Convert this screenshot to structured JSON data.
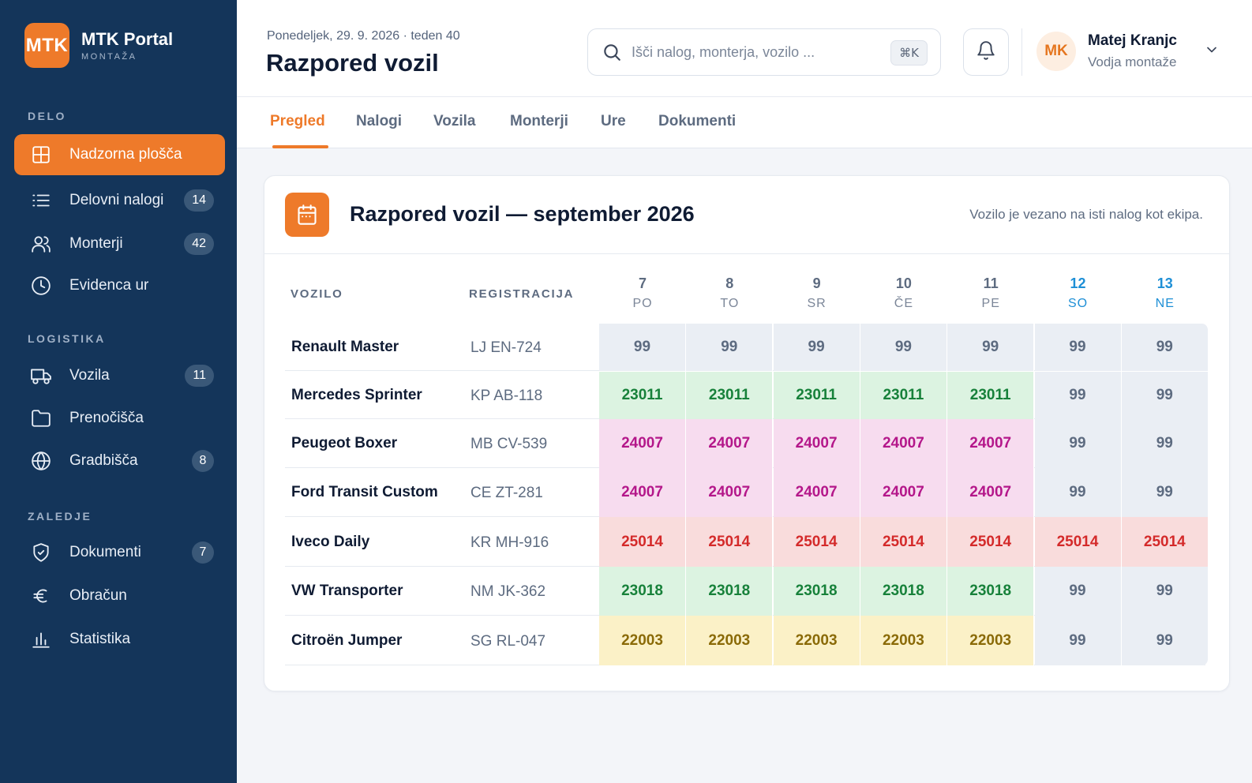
{
  "brand": {
    "logo": "MTK",
    "name": "MTK Portal",
    "sub": "MONTAŽA"
  },
  "sidebar": {
    "sections": [
      {
        "label": "DELO",
        "items": [
          {
            "label": "Nadzorna plošča",
            "icon": "dashboard-icon",
            "badge": "",
            "active": true
          },
          {
            "label": "Delovni nalogi",
            "icon": "list-icon",
            "badge": "14"
          },
          {
            "label": "Monterji",
            "icon": "users-icon",
            "badge": "42"
          },
          {
            "label": "Evidenca ur",
            "icon": "clock-icon",
            "badge": ""
          }
        ]
      },
      {
        "label": "LOGISTIKA",
        "items": [
          {
            "label": "Vozila",
            "icon": "truck-icon",
            "badge": "11"
          },
          {
            "label": "Prenočišča",
            "icon": "folder-icon",
            "badge": ""
          },
          {
            "label": "Gradbišča",
            "icon": "globe-icon",
            "badge": "8"
          }
        ]
      },
      {
        "label": "ZALEDJE",
        "items": [
          {
            "label": "Dokumenti",
            "icon": "shield-icon",
            "badge": "7"
          },
          {
            "label": "Obračun",
            "icon": "euro-icon",
            "badge": ""
          },
          {
            "label": "Statistika",
            "icon": "bar-chart-icon",
            "badge": ""
          }
        ]
      }
    ]
  },
  "header": {
    "date": "Ponedeljek, 29. 9. 2026 · teden 40",
    "title": "Razpored vozil",
    "search_placeholder": "Išči nalog, monterja, vozilo ...",
    "search_value": "",
    "shortcut": "⌘K",
    "user": {
      "initials": "MK",
      "name": "Matej Kranjc",
      "role": "Vodja montaže"
    }
  },
  "tabs": [
    "Pregled",
    "Nalogi",
    "Vozila",
    "Monterji",
    "Ure",
    "Dokumenti"
  ],
  "active_tab": "Pregled",
  "card": {
    "title": "Razpored vozil — september 2026",
    "note": "Vozilo je vezano na isti nalog kot ekipa.",
    "col_vehicle": "VOZILO",
    "col_reg": "REGISTRACIJA",
    "days": [
      {
        "num": "7",
        "dow": "PO",
        "weekend": false
      },
      {
        "num": "8",
        "dow": "TO",
        "weekend": false
      },
      {
        "num": "9",
        "dow": "SR",
        "weekend": false
      },
      {
        "num": "10",
        "dow": "ČE",
        "weekend": false
      },
      {
        "num": "11",
        "dow": "PE",
        "weekend": false
      },
      {
        "num": "12",
        "dow": "SO",
        "weekend": true
      },
      {
        "num": "13",
        "dow": "NE",
        "weekend": true
      }
    ],
    "rows": [
      {
        "name": "Renault Master",
        "reg": "LJ EN-724",
        "cells": [
          [
            "99",
            "idle"
          ],
          [
            "99",
            "idle"
          ],
          [
            "99",
            "idle"
          ],
          [
            "99",
            "idle"
          ],
          [
            "99",
            "idle"
          ],
          [
            "99",
            "idle"
          ],
          [
            "99",
            "idle"
          ]
        ]
      },
      {
        "name": "Mercedes Sprinter",
        "reg": "KP AB-118",
        "cells": [
          [
            "23011",
            "green"
          ],
          [
            "23011",
            "green"
          ],
          [
            "23011",
            "green"
          ],
          [
            "23011",
            "green"
          ],
          [
            "23011",
            "green"
          ],
          [
            "99",
            "idle"
          ],
          [
            "99",
            "idle"
          ]
        ]
      },
      {
        "name": "Peugeot Boxer",
        "reg": "MB CV-539",
        "cells": [
          [
            "24007",
            "pink"
          ],
          [
            "24007",
            "pink"
          ],
          [
            "24007",
            "pink"
          ],
          [
            "24007",
            "pink"
          ],
          [
            "24007",
            "pink"
          ],
          [
            "99",
            "idle"
          ],
          [
            "99",
            "idle"
          ]
        ]
      },
      {
        "name": "Ford Transit Custom",
        "reg": "CE ZT-281",
        "cells": [
          [
            "24007",
            "pink"
          ],
          [
            "24007",
            "pink"
          ],
          [
            "24007",
            "pink"
          ],
          [
            "24007",
            "pink"
          ],
          [
            "24007",
            "pink"
          ],
          [
            "99",
            "idle"
          ],
          [
            "99",
            "idle"
          ]
        ]
      },
      {
        "name": "Iveco Daily",
        "reg": "KR MH-916",
        "cells": [
          [
            "25014",
            "red"
          ],
          [
            "25014",
            "red"
          ],
          [
            "25014",
            "red"
          ],
          [
            "25014",
            "red"
          ],
          [
            "25014",
            "red"
          ],
          [
            "25014",
            "red"
          ],
          [
            "25014",
            "red"
          ]
        ]
      },
      {
        "name": "VW Transporter",
        "reg": "NM JK-362",
        "cells": [
          [
            "23018",
            "green"
          ],
          [
            "23018",
            "green"
          ],
          [
            "23018",
            "green"
          ],
          [
            "23018",
            "green"
          ],
          [
            "23018",
            "green"
          ],
          [
            "99",
            "idle"
          ],
          [
            "99",
            "idle"
          ]
        ]
      },
      {
        "name": "Citroën Jumper",
        "reg": "SG RL-047",
        "cells": [
          [
            "22003",
            "yellow"
          ],
          [
            "22003",
            "yellow"
          ],
          [
            "22003",
            "yellow"
          ],
          [
            "22003",
            "yellow"
          ],
          [
            "22003",
            "yellow"
          ],
          [
            "99",
            "idle"
          ],
          [
            "99",
            "idle"
          ]
        ]
      }
    ]
  },
  "colors": {
    "accent": "#ee7a2a",
    "sidebar": "#14355a",
    "weekend": "#1e8fd6"
  }
}
